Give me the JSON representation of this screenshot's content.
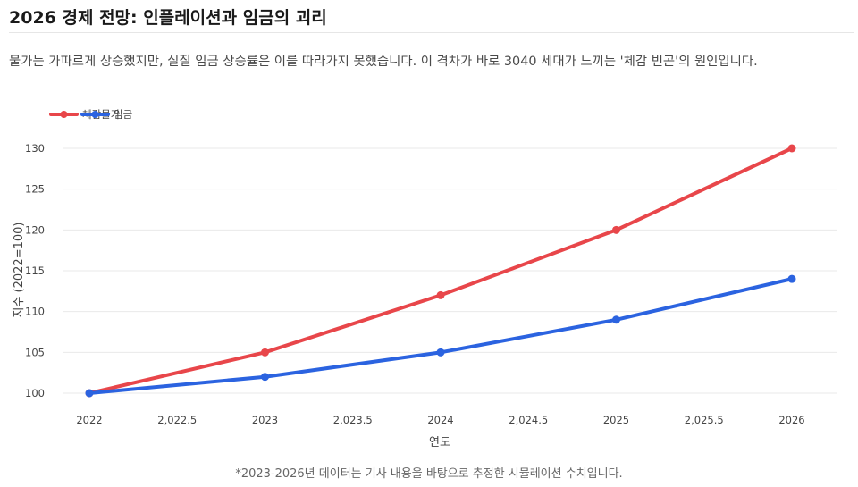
{
  "page": {
    "title": "2026 경제 전망: 인플레이션과 임금의 괴리",
    "subtitle": "물가는 가파르게 상승했지만, 실질 임금 상승률은 이를 따라가지 못했습니다. 이 격차가 바로 3040 세대가 느끼는 '체감 빈곤'의 원인입니다.",
    "footnote": "*2023-2026년 데이터는 기사 내용을 바탕으로 추정한 시뮬레이션 수치입니다."
  },
  "chart_data": {
    "type": "line",
    "title": "",
    "xlabel": "연도",
    "ylabel": "지수 (2022=100)",
    "x": [
      2022,
      2023,
      2024,
      2025,
      2026
    ],
    "xlim": [
      2021.985,
      2026
    ],
    "ylim": [
      100,
      130
    ],
    "x_ticks": [
      2022,
      2022.5,
      2023,
      2023.5,
      2024,
      2024.5,
      2025,
      2025.5,
      2026
    ],
    "x_tick_labels": [
      "2022",
      "2,022.5",
      "2023",
      "2,023.5",
      "2024",
      "2,024.5",
      "2025",
      "2,025.5",
      "2026"
    ],
    "y_ticks": [
      100,
      105,
      110,
      115,
      120,
      125,
      130
    ],
    "grid": true,
    "legend_position": "top-left",
    "series": [
      {
        "name": "체감물가",
        "color": "#e8464a",
        "values": [
          100,
          105,
          112,
          120,
          130
        ]
      },
      {
        "name": "임금",
        "color": "#2b63e0",
        "values": [
          100,
          102,
          105,
          109,
          114
        ]
      }
    ]
  }
}
